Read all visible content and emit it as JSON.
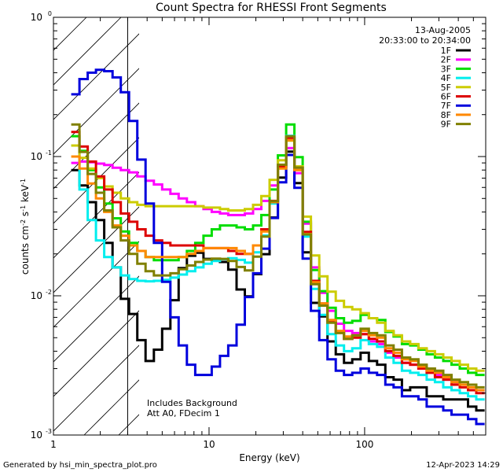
{
  "chart_data": {
    "type": "line",
    "title": "Count Spectra for RHESSI Front Segments",
    "xlabel": "Energy (keV)",
    "ylabel": "counts cm^-2 s^-1 keV^-1",
    "xscale": "log",
    "yscale": "log",
    "xlim": [
      1,
      600
    ],
    "ylim": [
      0.001,
      1
    ],
    "x_ticks": [
      {
        "value": 1,
        "label": "1"
      },
      {
        "value": 10,
        "label": "10"
      },
      {
        "value": 100,
        "label": "100"
      }
    ],
    "y_ticks": [
      {
        "value": 1,
        "base": "10",
        "exp": "0"
      },
      {
        "value": 0.1,
        "base": "10",
        "exp": "-1"
      },
      {
        "value": 0.01,
        "base": "10",
        "exp": "-2"
      },
      {
        "value": 0.001,
        "base": "10",
        "exp": "-3"
      }
    ],
    "shaded_region_upper_keV": 3,
    "date": "13-Aug-2005",
    "time_range": "20:33:00 to 20:34:00",
    "annotations": [
      "Includes Background",
      "Att A0, FDecim 1"
    ],
    "series": [
      {
        "name": "1F",
        "color": "#000000",
        "values": [
          0.08,
          0.062,
          0.047,
          0.035,
          0.024,
          0.016,
          0.0095,
          0.0074,
          0.0048,
          0.0034,
          0.0041,
          0.0058,
          0.0093,
          0.0158,
          0.0194,
          0.0204,
          0.0184,
          0.0181,
          0.0175,
          0.0154,
          0.0111,
          0.0099,
          0.0143,
          0.0199,
          0.0365,
          0.0706,
          0.1086,
          0.0644,
          0.0205,
          0.0089,
          0.0071,
          0.0047,
          0.0038,
          0.0033,
          0.0035,
          0.0039,
          0.0034,
          0.0032,
          0.0026,
          0.0025,
          0.0021,
          0.0022,
          0.0022,
          0.0019,
          0.0019,
          0.0018,
          0.0018,
          0.0018,
          0.0016,
          0.0015
        ]
      },
      {
        "name": "2F",
        "color": "#ff00ff",
        "values": [
          0.09,
          0.092,
          0.091,
          0.089,
          0.087,
          0.083,
          0.08,
          0.077,
          0.072,
          0.067,
          0.063,
          0.058,
          0.054,
          0.05,
          0.047,
          0.044,
          0.042,
          0.04,
          0.039,
          0.038,
          0.038,
          0.039,
          0.042,
          0.048,
          0.062,
          0.085,
          0.115,
          0.076,
          0.033,
          0.016,
          0.0105,
          0.0078,
          0.0063,
          0.0056,
          0.0054,
          0.0053,
          0.0047,
          0.0045,
          0.0039,
          0.0036,
          0.0033,
          0.0032,
          0.003,
          0.0029,
          0.0027,
          0.0025,
          0.0024,
          0.0023,
          0.0021,
          0.0021
        ]
      },
      {
        "name": "3F",
        "color": "#00dd00",
        "values": [
          0.14,
          0.11,
          0.08,
          0.06,
          0.046,
          0.036,
          0.029,
          0.024,
          0.021,
          0.019,
          0.018,
          0.018,
          0.018,
          0.019,
          0.021,
          0.024,
          0.027,
          0.03,
          0.032,
          0.032,
          0.031,
          0.03,
          0.032,
          0.038,
          0.058,
          0.102,
          0.17,
          0.099,
          0.034,
          0.0153,
          0.0108,
          0.0082,
          0.0069,
          0.0064,
          0.0066,
          0.0073,
          0.0069,
          0.0067,
          0.0055,
          0.0051,
          0.0045,
          0.0044,
          0.0041,
          0.0038,
          0.0036,
          0.0034,
          0.0032,
          0.003,
          0.0028,
          0.0027
        ]
      },
      {
        "name": "4F",
        "color": "#00eeee",
        "values": [
          0.12,
          0.058,
          0.035,
          0.025,
          0.019,
          0.016,
          0.014,
          0.0132,
          0.0128,
          0.0127,
          0.0128,
          0.013,
          0.0135,
          0.0142,
          0.015,
          0.016,
          0.017,
          0.0178,
          0.0183,
          0.0186,
          0.0181,
          0.0173,
          0.0205,
          0.0271,
          0.046,
          0.084,
          0.141,
          0.083,
          0.0266,
          0.0112,
          0.0073,
          0.0053,
          0.0044,
          0.004,
          0.0042,
          0.0048,
          0.0045,
          0.0043,
          0.0036,
          0.0033,
          0.0029,
          0.0028,
          0.0027,
          0.0025,
          0.0024,
          0.0022,
          0.0021,
          0.002,
          0.0019,
          0.0018
        ]
      },
      {
        "name": "5F",
        "color": "#cccc00",
        "values": [
          0.12,
          0.098,
          0.082,
          0.07,
          0.061,
          0.055,
          0.05,
          0.047,
          0.045,
          0.044,
          0.044,
          0.044,
          0.044,
          0.044,
          0.044,
          0.044,
          0.043,
          0.043,
          0.042,
          0.041,
          0.041,
          0.042,
          0.045,
          0.052,
          0.068,
          0.094,
          0.13,
          0.085,
          0.037,
          0.0195,
          0.0138,
          0.0107,
          0.0092,
          0.0083,
          0.008,
          0.0075,
          0.0069,
          0.0064,
          0.0056,
          0.0052,
          0.0047,
          0.0045,
          0.0042,
          0.004,
          0.0038,
          0.0036,
          0.0034,
          0.0032,
          0.003,
          0.0029
        ]
      },
      {
        "name": "6F",
        "color": "#dd0000",
        "values": [
          0.15,
          0.118,
          0.092,
          0.072,
          0.058,
          0.047,
          0.039,
          0.034,
          0.03,
          0.027,
          0.025,
          0.024,
          0.023,
          0.023,
          0.023,
          0.023,
          0.022,
          0.022,
          0.022,
          0.021,
          0.02,
          0.02,
          0.023,
          0.03,
          0.048,
          0.085,
          0.136,
          0.083,
          0.0288,
          0.0128,
          0.0088,
          0.0066,
          0.0055,
          0.0049,
          0.005,
          0.0053,
          0.0049,
          0.0047,
          0.004,
          0.0037,
          0.0033,
          0.0032,
          0.003,
          0.0028,
          0.0026,
          0.0025,
          0.0023,
          0.0022,
          0.0021,
          0.002
        ]
      },
      {
        "name": "7F",
        "color": "#0000dd",
        "values": [
          0.28,
          0.36,
          0.4,
          0.42,
          0.41,
          0.37,
          0.29,
          0.18,
          0.095,
          0.046,
          0.024,
          0.0126,
          0.007,
          0.0044,
          0.0032,
          0.0027,
          0.0027,
          0.0031,
          0.0037,
          0.0044,
          0.0062,
          0.0098,
          0.0145,
          0.0218,
          0.0362,
          0.0653,
          0.1026,
          0.0596,
          0.0185,
          0.0078,
          0.0048,
          0.0035,
          0.0029,
          0.0027,
          0.0028,
          0.003,
          0.0028,
          0.0027,
          0.0023,
          0.0022,
          0.0019,
          0.0019,
          0.0018,
          0.0016,
          0.0016,
          0.0015,
          0.0014,
          0.0014,
          0.0013,
          0.0012
        ]
      },
      {
        "name": "8F",
        "color": "#ff8800",
        "values": [
          0.1,
          0.082,
          0.064,
          0.05,
          0.04,
          0.032,
          0.027,
          0.023,
          0.021,
          0.019,
          0.019,
          0.019,
          0.019,
          0.019,
          0.02,
          0.021,
          0.022,
          0.022,
          0.022,
          0.022,
          0.021,
          0.02,
          0.023,
          0.029,
          0.047,
          0.082,
          0.131,
          0.08,
          0.0278,
          0.0125,
          0.0088,
          0.0067,
          0.0056,
          0.0051,
          0.0052,
          0.0056,
          0.0052,
          0.005,
          0.0042,
          0.0039,
          0.0035,
          0.0034,
          0.0031,
          0.0029,
          0.0028,
          0.0026,
          0.0024,
          0.0023,
          0.0022,
          0.0021
        ]
      },
      {
        "name": "9F",
        "color": "#808000",
        "values": [
          0.17,
          0.108,
          0.075,
          0.055,
          0.041,
          0.031,
          0.025,
          0.02,
          0.017,
          0.015,
          0.014,
          0.014,
          0.0145,
          0.0155,
          0.0165,
          0.0175,
          0.0182,
          0.0185,
          0.0184,
          0.0178,
          0.0161,
          0.0152,
          0.0191,
          0.0266,
          0.0478,
          0.0873,
          0.1397,
          0.0834,
          0.0276,
          0.0121,
          0.0085,
          0.0064,
          0.0054,
          0.0049,
          0.0052,
          0.0058,
          0.0054,
          0.0052,
          0.0044,
          0.0041,
          0.0036,
          0.0035,
          0.0032,
          0.003,
          0.0029,
          0.0027,
          0.0025,
          0.0024,
          0.0023,
          0.0022
        ]
      }
    ]
  },
  "footer": {
    "generated_by": "Generated by hsi_min_spectra_plot.pro",
    "timestamp": "12-Apr-2023 14:29"
  }
}
